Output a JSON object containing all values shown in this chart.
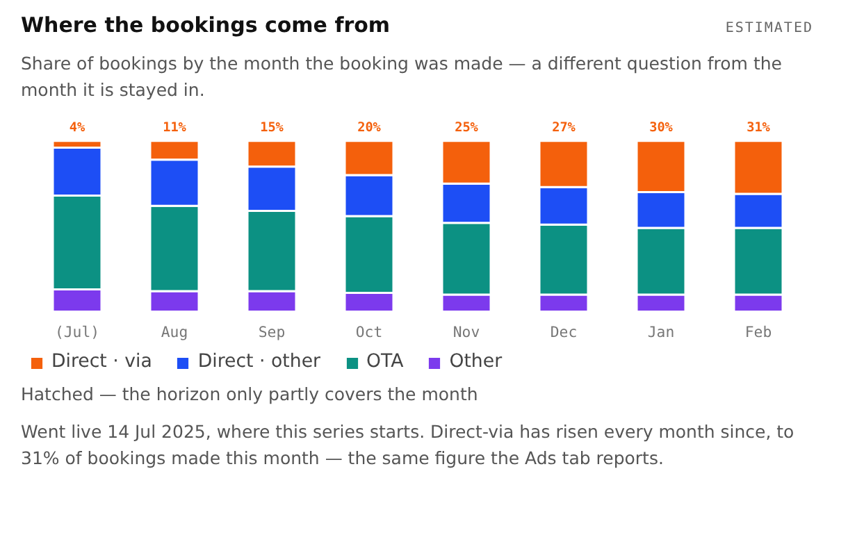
{
  "chart_data": {
    "type": "bar",
    "stacked": true,
    "title": "Where the bookings come from",
    "subtitle": "Share of bookings by the month the booking was made — a different question from the month it is stayed in.",
    "categories": [
      "(Jul)",
      "Aug",
      "Sep",
      "Oct",
      "Nov",
      "Dec",
      "Jan",
      "Feb"
    ],
    "series": [
      {
        "name": "Other",
        "color": "#7c3aed",
        "values": [
          13,
          12,
          12,
          11,
          10,
          10,
          10,
          10
        ]
      },
      {
        "name": "OTA",
        "color": "#0c9183",
        "values": [
          55,
          50,
          47,
          45,
          42,
          41,
          39,
          39
        ]
      },
      {
        "name": "Direct · other",
        "color": "#1d4ef5",
        "values": [
          28,
          27,
          26,
          24,
          23,
          22,
          21,
          20
        ]
      },
      {
        "name": "Direct · via",
        "color": "#f4600c",
        "values": [
          4,
          11,
          15,
          20,
          25,
          27,
          30,
          31
        ],
        "value_labels": [
          "4%",
          "11%",
          "15%",
          "20%",
          "25%",
          "27%",
          "30%",
          "31%"
        ]
      }
    ],
    "legend": "bottom",
    "annotations": [
      "ESTIMATED",
      "Hatched — the horizon only partly covers the month",
      "Went live 14 Jul 2025, where this series starts. Direct-via has risen every month since, to 31% of bookings made this month — the same figure the Ads tab reports."
    ]
  }
}
